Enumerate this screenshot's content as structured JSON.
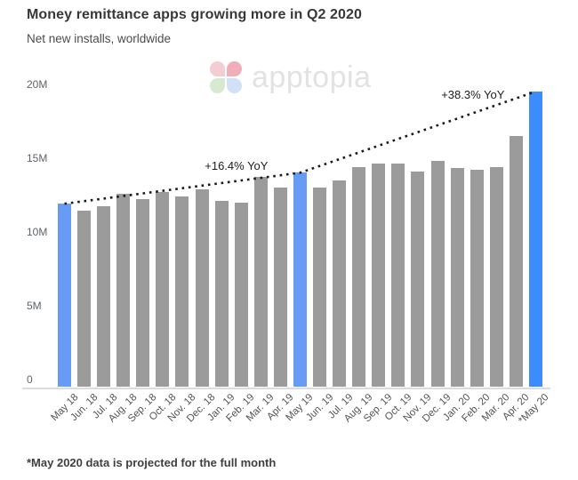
{
  "header": {
    "title": "Money remittance apps growing more in Q2 2020",
    "subtitle": "Net new installs, worldwide"
  },
  "watermark": {
    "brand": "apptopia",
    "petal_colors": {
      "top_left": "#f6ccd3",
      "top_right": "#f0aeba",
      "bottom_left": "#d7eacf",
      "bottom_right": "#d2e1f8"
    }
  },
  "footer": {
    "note": "*May 2020 data is projected for the full month"
  },
  "chart_data": {
    "type": "bar",
    "title": "Money remittance apps growing more in Q2 2020",
    "subtitle": "Net new installs, worldwide",
    "unit": "millions of installs",
    "categories": [
      "May 18",
      "Jun. 18",
      "Jul. 18",
      "Aug. 18",
      "Sep. 18",
      "Oct. 18",
      "Nov. 18",
      "Dec. 18",
      "Jan. 19",
      "Feb. 19",
      "Mar. 19",
      "Apr. 19",
      "May 19",
      "Jun. 19",
      "Jul. 19",
      "Aug. 19",
      "Sep. 19",
      "Oct. 19",
      "Nov. 19",
      "Dec. 19",
      "Jan. 20",
      "Feb. 20",
      "Mar. 20",
      "Apr. 20",
      "*May 20"
    ],
    "values": [
      12.4,
      11.9,
      12.2,
      13.1,
      12.7,
      13.2,
      12.9,
      13.4,
      12.6,
      12.5,
      14.2,
      13.5,
      14.5,
      13.5,
      14.0,
      14.9,
      15.1,
      15.1,
      14.6,
      15.3,
      14.8,
      14.7,
      14.9,
      17.0,
      20.0
    ],
    "ylim": [
      0,
      20
    ],
    "yticks": [
      {
        "label": "0",
        "value": 0
      },
      {
        "label": "5M",
        "value": 5
      },
      {
        "label": "10M",
        "value": 10
      },
      {
        "label": "15M",
        "value": 15
      },
      {
        "label": "20M",
        "value": 20
      }
    ],
    "grid": false,
    "legend": null,
    "bar_color": "#9b9b9b",
    "highlight_color": "#689cf4",
    "highlight_final_color": "#3e8bfd",
    "highlight_indices": [
      0,
      12,
      24
    ],
    "trendline": {
      "style": "dotted",
      "color": "#1a1a1a",
      "through_indices": [
        0,
        12,
        24
      ]
    },
    "annotations": [
      {
        "text": "+16.4% YoY",
        "anchor_index": 12
      },
      {
        "text": "+38.3% YoY",
        "anchor_index": 24
      }
    ]
  }
}
